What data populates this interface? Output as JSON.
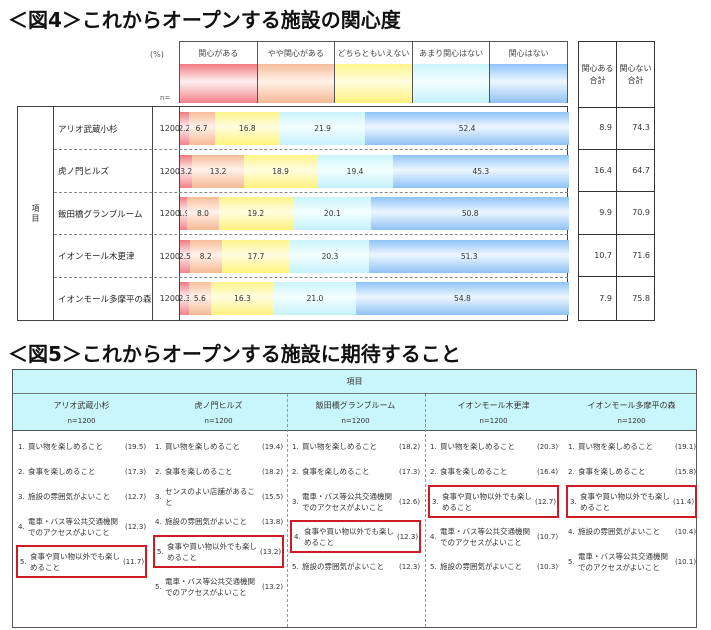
{
  "fig4": {
    "title": "＜図4＞これからオープンする施設の関心度",
    "pct_label": "(%)",
    "n_label": "n=",
    "item_label": "項目",
    "legend": [
      {
        "label": "関心がある",
        "color": "#f07a80"
      },
      {
        "label": "やや関心がある",
        "color": "#f8bd9a"
      },
      {
        "label": "どちらともいえない",
        "color": "#fff48a"
      },
      {
        "label": "あまり関心はない",
        "color": "#c9f4fb"
      },
      {
        "label": "関心はない",
        "color": "#8ec4f8"
      }
    ],
    "summary_headers": [
      "関心ある\n合計",
      "関心ない\n合計"
    ],
    "rows": [
      {
        "name": "アリオ武蔵小杉",
        "n": "1200",
        "values": [
          "2.2",
          "6.7",
          "16.8",
          "21.9",
          "52.4"
        ],
        "sum_yes": "8.9",
        "sum_no": "74.3"
      },
      {
        "name": "虎ノ門ヒルズ",
        "n": "1200",
        "values": [
          "3.2",
          "13.2",
          "18.9",
          "19.4",
          "45.3"
        ],
        "sum_yes": "16.4",
        "sum_no": "64.7"
      },
      {
        "name": "飯田橋グランブルーム",
        "n": "1200",
        "values": [
          "1.9",
          "8.0",
          "19.2",
          "20.1",
          "50.8"
        ],
        "sum_yes": "9.9",
        "sum_no": "70.9"
      },
      {
        "name": "イオンモール木更津",
        "n": "1200",
        "values": [
          "2.5",
          "8.2",
          "17.7",
          "20.3",
          "51.3"
        ],
        "sum_yes": "10.7",
        "sum_no": "71.6"
      },
      {
        "name": "イオンモール多摩平の森",
        "n": "1200",
        "values": [
          "2.3",
          "5.6",
          "16.3",
          "21.0",
          "54.8"
        ],
        "sum_yes": "7.9",
        "sum_no": "75.8"
      }
    ]
  },
  "fig5": {
    "title": "＜図5＞これからオープンする施設に期待すること",
    "header": "項目",
    "columns": [
      {
        "name": "アリオ武蔵小杉",
        "n": "n=1200",
        "items": [
          {
            "rank": "1.",
            "text": "買い物を楽しめること",
            "value": "(19.5)",
            "highlight": false
          },
          {
            "rank": "2.",
            "text": "食事を楽しめること",
            "value": "(17.3)",
            "highlight": false
          },
          {
            "rank": "3.",
            "text": "施設の雰囲気がよいこと",
            "value": "(12.7)",
            "highlight": false
          },
          {
            "rank": "4.",
            "text": "電車・バス等公共交通機関でのアクセスがよいこと",
            "value": "(12.3)",
            "highlight": false
          },
          {
            "rank": "5.",
            "text": "食事や買い物以外でも楽しめること",
            "value": "(11.7)",
            "highlight": true
          }
        ]
      },
      {
        "name": "虎ノ門ヒルズ",
        "n": "n=1200",
        "items": [
          {
            "rank": "1.",
            "text": "買い物を楽しめること",
            "value": "(19.4)",
            "highlight": false
          },
          {
            "rank": "2.",
            "text": "食事を楽しめること",
            "value": "(18.2)",
            "highlight": false
          },
          {
            "rank": "3.",
            "text": "センスのよい店舗があること",
            "value": "(15.5)",
            "highlight": false
          },
          {
            "rank": "4.",
            "text": "施設の雰囲気がよいこと",
            "value": "(13.8)",
            "highlight": false
          },
          {
            "rank": "5.",
            "text": "食事や買い物以外でも楽しめること",
            "value": "(13.2)",
            "highlight": true
          },
          {
            "rank": "5.",
            "text": "電車・バス等公共交通機関でのアクセスがよいこと",
            "value": "(13.2)",
            "highlight": false
          }
        ]
      },
      {
        "name": "飯田橋グランブルーム",
        "n": "n=1200",
        "items": [
          {
            "rank": "1.",
            "text": "買い物を楽しめること",
            "value": "(18.2)",
            "highlight": false
          },
          {
            "rank": "2.",
            "text": "食事を楽しめること",
            "value": "(17.3)",
            "highlight": false
          },
          {
            "rank": "3.",
            "text": "電車・バス等公共交通機関でのアクセスがよいこと",
            "value": "(12.6)",
            "highlight": false
          },
          {
            "rank": "4.",
            "text": "食事や買い物以外でも楽しめること",
            "value": "(12.3)",
            "highlight": true
          },
          {
            "rank": "5.",
            "text": "施設の雰囲気がよいこと",
            "value": "(12.3)",
            "highlight": false
          }
        ]
      },
      {
        "name": "イオンモール木更津",
        "n": "n=1200",
        "items": [
          {
            "rank": "1.",
            "text": "買い物を楽しめること",
            "value": "(20.3)",
            "highlight": false
          },
          {
            "rank": "2.",
            "text": "食事を楽しめること",
            "value": "(16.4)",
            "highlight": false
          },
          {
            "rank": "3.",
            "text": "食事や買い物以外でも楽しめること",
            "value": "(12.7)",
            "highlight": true
          },
          {
            "rank": "4.",
            "text": "電車・バス等公共交通機関でのアクセスがよいこと",
            "value": "(10.7)",
            "highlight": false
          },
          {
            "rank": "5.",
            "text": "施設の雰囲気がよいこと",
            "value": "(10.3)",
            "highlight": false
          }
        ]
      },
      {
        "name": "イオンモール多摩平の森",
        "n": "n=1200",
        "items": [
          {
            "rank": "1.",
            "text": "買い物を楽しめること",
            "value": "(19.1)",
            "highlight": false
          },
          {
            "rank": "2.",
            "text": "食事を楽しめること",
            "value": "(15.8)",
            "highlight": false
          },
          {
            "rank": "3.",
            "text": "食事や買い物以外でも楽しめること",
            "value": "(11.4)",
            "highlight": true
          },
          {
            "rank": "4.",
            "text": "施設の雰囲気がよいこと",
            "value": "(10.4)",
            "highlight": false
          },
          {
            "rank": "5.",
            "text": "電車・バス等公共交通機関でのアクセスがよいこと",
            "value": "(10.1)",
            "highlight": false
          }
        ]
      }
    ]
  },
  "chart_data": [
    {
      "type": "bar",
      "orientation": "horizontal-stacked-100",
      "title": "＜図4＞これからオープンする施設の関心度",
      "xlabel": "(%)",
      "ylabel": "項目",
      "categories": [
        "アリオ武蔵小杉",
        "虎ノ門ヒルズ",
        "飯田橋グランブルーム",
        "イオンモール木更津",
        "イオンモール多摩平の森"
      ],
      "n": [
        1200,
        1200,
        1200,
        1200,
        1200
      ],
      "series": [
        {
          "name": "関心がある",
          "values": [
            2.2,
            3.2,
            1.9,
            2.5,
            2.3
          ]
        },
        {
          "name": "やや関心がある",
          "values": [
            6.7,
            13.2,
            8.0,
            8.2,
            5.6
          ]
        },
        {
          "name": "どちらともいえない",
          "values": [
            16.8,
            18.9,
            19.2,
            17.7,
            16.3
          ]
        },
        {
          "name": "あまり関心はない",
          "values": [
            21.9,
            19.4,
            20.1,
            20.3,
            21.0
          ]
        },
        {
          "name": "関心はない",
          "values": [
            52.4,
            45.3,
            50.8,
            51.3,
            54.8
          ]
        }
      ],
      "totals": {
        "関心ある合計": [
          8.9,
          16.4,
          9.9,
          10.7,
          7.9
        ],
        "関心ない合計": [
          74.3,
          64.7,
          70.9,
          71.6,
          75.8
        ]
      },
      "xlim": [
        0,
        100
      ],
      "legend_position": "top"
    },
    {
      "type": "table",
      "title": "＜図5＞これからオープンする施設に期待すること",
      "columns": [
        "アリオ武蔵小杉",
        "虎ノ門ヒルズ",
        "飯田橋グランブルーム",
        "イオンモール木更津",
        "イオンモール多摩平の森"
      ],
      "n": [
        1200,
        1200,
        1200,
        1200,
        1200
      ]
    }
  ]
}
